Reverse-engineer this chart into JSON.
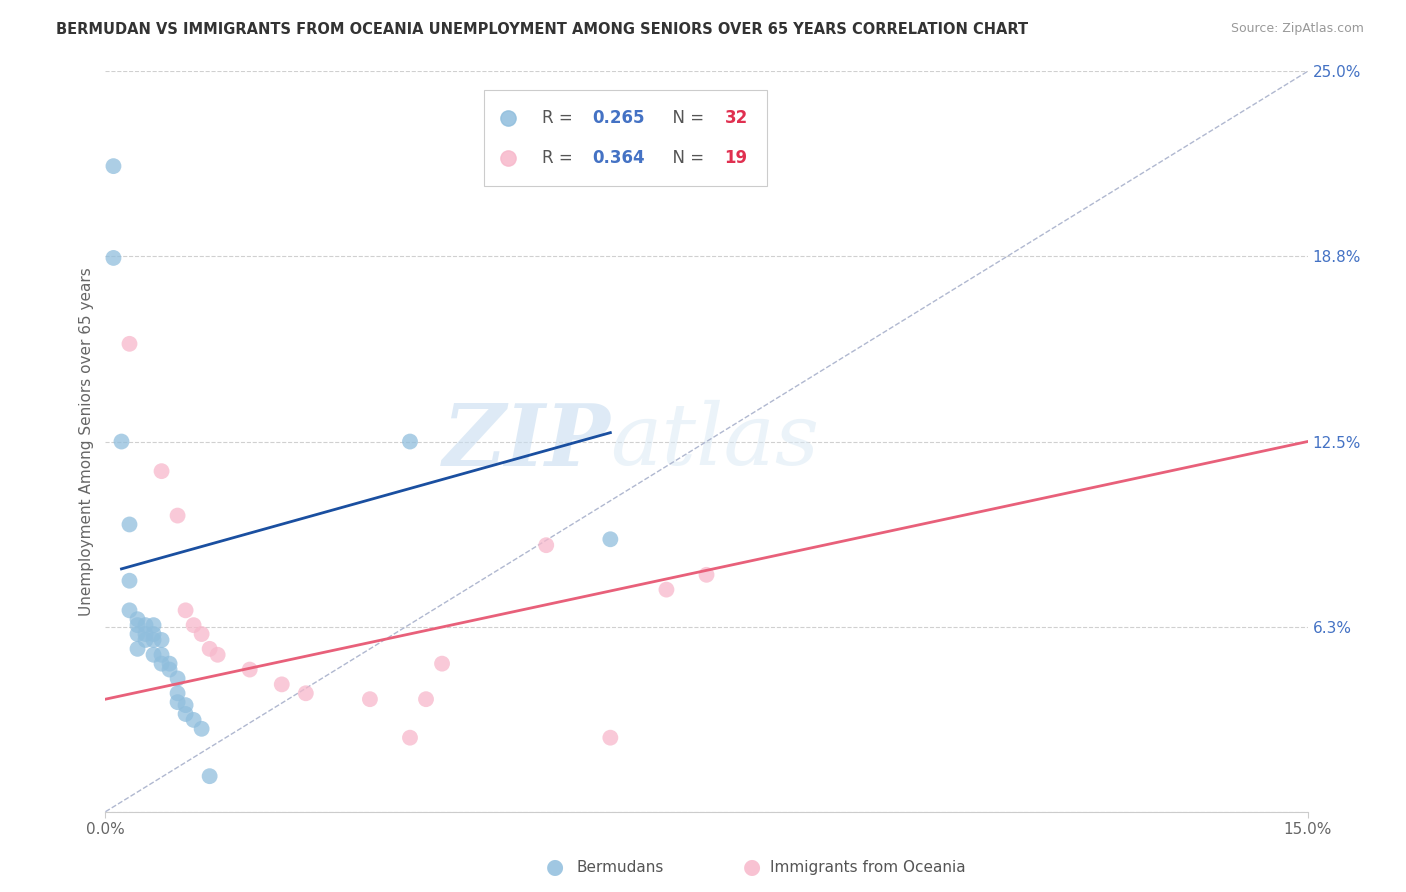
{
  "title": "BERMUDAN VS IMMIGRANTS FROM OCEANIA UNEMPLOYMENT AMONG SENIORS OVER 65 YEARS CORRELATION CHART",
  "source": "Source: ZipAtlas.com",
  "ylabel": "Unemployment Among Seniors over 65 years",
  "xlim": [
    0.0,
    0.15
  ],
  "ylim": [
    0.0,
    0.25
  ],
  "yticks": [
    0.0,
    0.0625,
    0.125,
    0.1875,
    0.25
  ],
  "yticklabels_right": [
    "",
    "6.3%",
    "12.5%",
    "18.8%",
    "25.0%"
  ],
  "grid_color": "#d0d0d0",
  "watermark_zip": "ZIP",
  "watermark_atlas": "atlas",
  "legend_r1": "0.265",
  "legend_n1": "32",
  "legend_r2": "0.364",
  "legend_n2": "19",
  "bermudan_color": "#90bedd",
  "oceania_color": "#f7b8cb",
  "bermudan_line_color": "#1a4fa0",
  "oceania_line_color": "#e8607a",
  "dashed_line_color": "#b0b8d0",
  "r_color": "#4472c4",
  "n_color": "#e03050",
  "bermudan_x": [
    0.001,
    0.001,
    0.002,
    0.003,
    0.003,
    0.003,
    0.004,
    0.004,
    0.004,
    0.004,
    0.005,
    0.005,
    0.005,
    0.006,
    0.006,
    0.006,
    0.006,
    0.007,
    0.007,
    0.007,
    0.008,
    0.008,
    0.009,
    0.009,
    0.009,
    0.01,
    0.01,
    0.011,
    0.012,
    0.013,
    0.038,
    0.063
  ],
  "bermudan_y": [
    0.218,
    0.187,
    0.125,
    0.097,
    0.078,
    0.068,
    0.065,
    0.063,
    0.06,
    0.055,
    0.063,
    0.06,
    0.058,
    0.063,
    0.06,
    0.058,
    0.053,
    0.058,
    0.053,
    0.05,
    0.05,
    0.048,
    0.045,
    0.04,
    0.037,
    0.036,
    0.033,
    0.031,
    0.028,
    0.012,
    0.125,
    0.092
  ],
  "oceania_x": [
    0.003,
    0.007,
    0.009,
    0.01,
    0.011,
    0.012,
    0.013,
    0.014,
    0.018,
    0.022,
    0.025,
    0.033,
    0.038,
    0.04,
    0.042,
    0.055,
    0.063,
    0.07,
    0.075
  ],
  "oceania_y": [
    0.158,
    0.115,
    0.1,
    0.068,
    0.063,
    0.06,
    0.055,
    0.053,
    0.048,
    0.043,
    0.04,
    0.038,
    0.025,
    0.038,
    0.05,
    0.09,
    0.025,
    0.075,
    0.08
  ],
  "bermudan_trend_x": [
    0.002,
    0.063
  ],
  "bermudan_trend_y": [
    0.082,
    0.128
  ],
  "oceania_trend_x": [
    0.0,
    0.15
  ],
  "oceania_trend_y": [
    0.038,
    0.125
  ],
  "dashed_trend_x": [
    0.0,
    0.15
  ],
  "dashed_trend_y": [
    0.0,
    0.25
  ]
}
